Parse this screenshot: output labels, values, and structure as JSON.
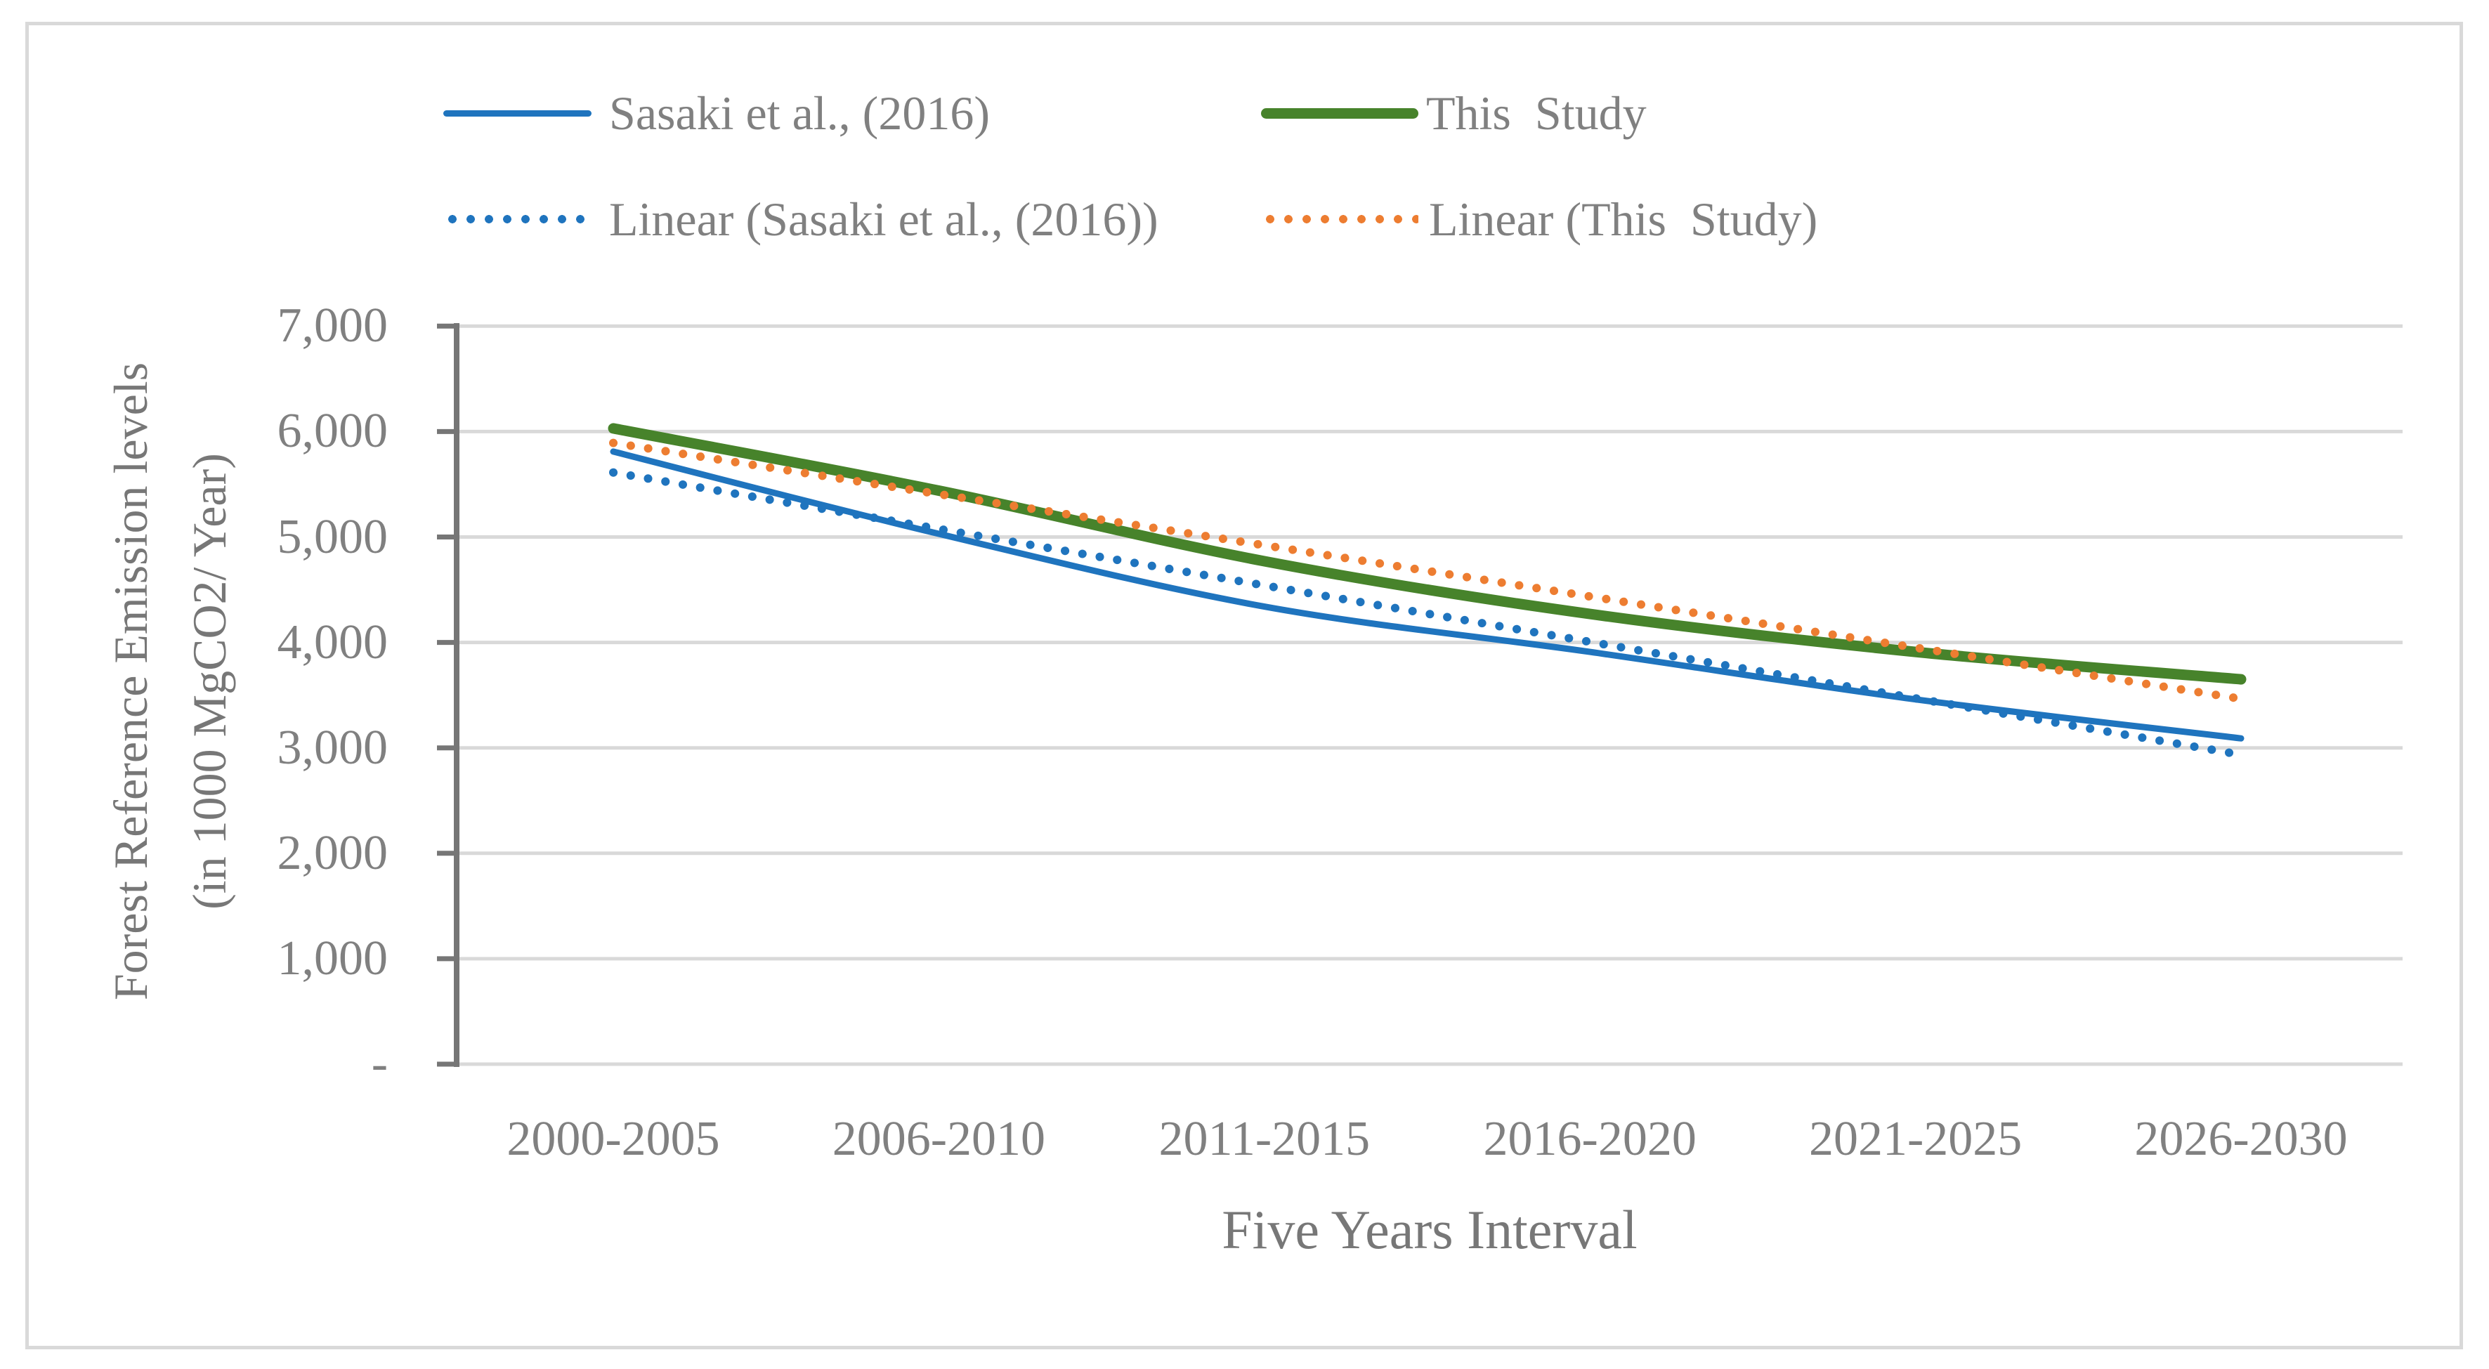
{
  "figure": {
    "x_axis_title": "Five Years Interval",
    "y_axis_title_line1": "Forest Reference Emission levels",
    "y_axis_title_line2": "(in 1000 MgCO2/ Year)"
  },
  "colors": {
    "sasaki_blue": "#1F74BE",
    "study_green": "#47832B",
    "trend_orange": "#ED7D31",
    "gridline": "#D9D9D9",
    "axis": "#767676",
    "text": "#808080"
  },
  "legend": [
    {
      "id": "sasaki",
      "label": "Sasaki et al., (2016)",
      "color": "#1F74BE",
      "style": "solid",
      "thickness": 9
    },
    {
      "id": "this-study",
      "label": "This  Study",
      "color": "#47832B",
      "style": "solid",
      "thickness": 15
    },
    {
      "id": "linear-sasaki",
      "label": "Linear (Sasaki et al., (2016))",
      "color": "#1F74BE",
      "style": "dotted",
      "thickness": 12
    },
    {
      "id": "linear-this-study",
      "label": "Linear (This  Study)",
      "color": "#ED7D31",
      "style": "dotted",
      "thickness": 12
    }
  ],
  "chart_data": {
    "type": "line",
    "title": "",
    "xlabel": "Five Years Interval",
    "ylabel": "Forest Reference Emission levels (in 1000 MgCO2/ Year)",
    "categories": [
      "2000-2005",
      "2006-2010",
      "2011-2015",
      "2016-2020",
      "2021-2025",
      "2026-2030"
    ],
    "y_axis": {
      "min": 0,
      "max": 7000,
      "step": 1000,
      "tick_labels": [
        "7,000",
        "6,000",
        "5,000",
        "4,000",
        "3,000",
        "2,000",
        "1,000",
        "-"
      ]
    },
    "grid": "horizontal",
    "legend_position": "top",
    "series": [
      {
        "name": "Sasaki et al., (2016)",
        "color": "#1F74BE",
        "style": "solid",
        "width": 9,
        "smooth": true,
        "values": [
          5810,
          5030,
          4340,
          3910,
          3460,
          3090
        ]
      },
      {
        "name": "This  Study",
        "color": "#47832B",
        "style": "solid",
        "width": 15,
        "smooth": true,
        "values": [
          6030,
          5440,
          4770,
          4270,
          3910,
          3650
        ]
      },
      {
        "name": "Linear (Sasaki et al., (2016))",
        "color": "#1F74BE",
        "style": "dotted",
        "width": 12,
        "trend_of": 0
      },
      {
        "name": "Linear (This  Study)",
        "color": "#ED7D31",
        "style": "dotted",
        "width": 12,
        "trend_of": 1
      }
    ]
  }
}
